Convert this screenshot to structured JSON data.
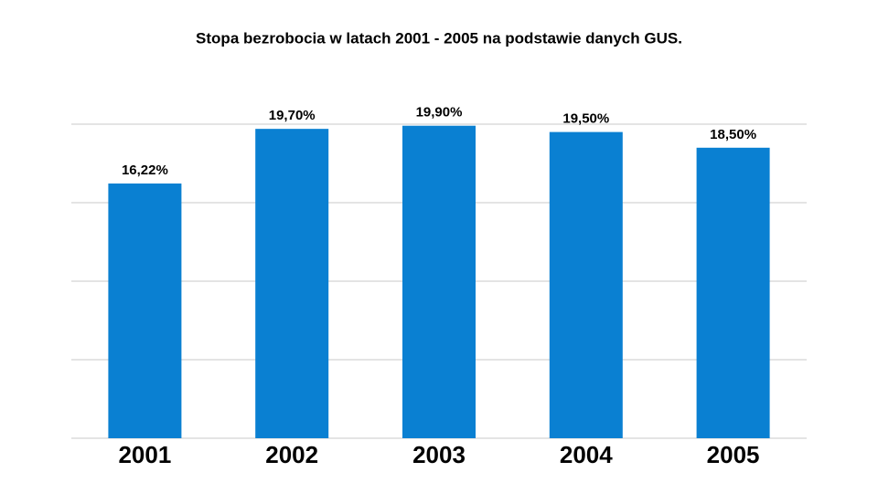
{
  "chart_data": {
    "type": "bar",
    "title": "Stopa bezrobocia w latach 2001 - 2005 na podstawie danych GUS.",
    "categories": [
      "2001",
      "2002",
      "2003",
      "2004",
      "2005"
    ],
    "values": [
      16.22,
      19.7,
      19.9,
      19.5,
      18.5
    ],
    "value_labels": [
      "16,22%",
      "19,70%",
      "19,90%",
      "19,50%",
      "18,50%"
    ],
    "color": "#0a80d2",
    "ylim": [
      0,
      20
    ],
    "yticks": [
      0,
      5,
      10,
      15,
      20
    ],
    "grid": true
  }
}
